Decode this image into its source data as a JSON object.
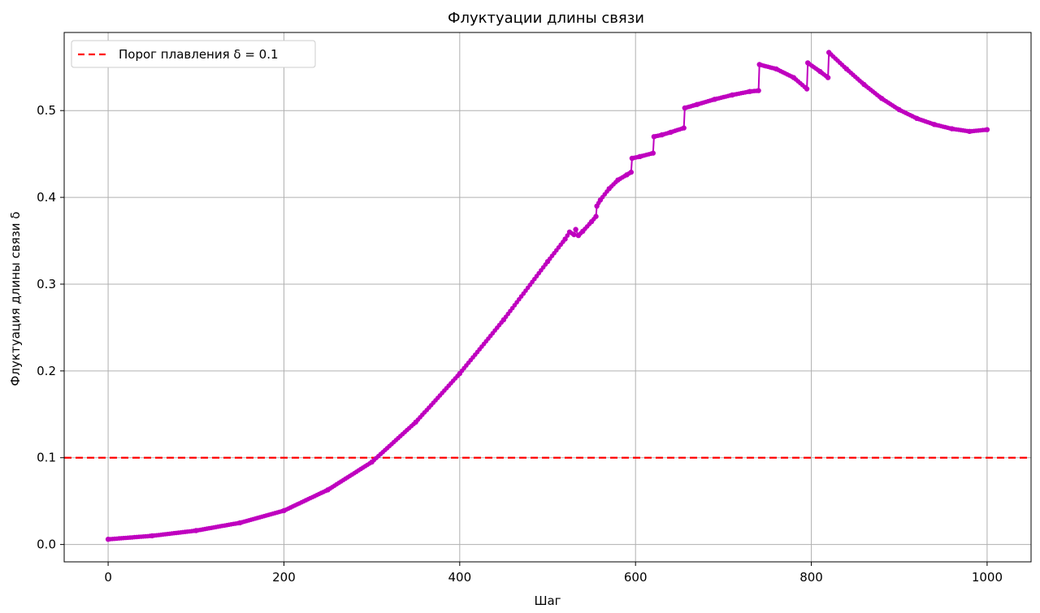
{
  "chart_data": {
    "type": "line",
    "title": "Флуктуации длины связи",
    "xlabel": "Шаг",
    "ylabel": "Флуктуация длины связи δ",
    "xlim": [
      -50,
      1050
    ],
    "ylim": [
      -0.02,
      0.59
    ],
    "xticks": [
      0,
      200,
      400,
      600,
      800,
      1000
    ],
    "xtick_labels": [
      "0",
      "200",
      "400",
      "600",
      "800",
      "1000"
    ],
    "yticks": [
      0.0,
      0.1,
      0.2,
      0.3,
      0.4,
      0.5
    ],
    "ytick_labels": [
      "0.0",
      "0.1",
      "0.2",
      "0.3",
      "0.4",
      "0.5"
    ],
    "grid": true,
    "legend_position": "top-left",
    "series": [
      {
        "color": "#bf00bf",
        "marker": "point",
        "x": [
          0,
          50,
          100,
          150,
          200,
          250,
          300,
          350,
          400,
          450,
          500,
          520,
          525,
          530,
          532,
          535,
          540,
          550,
          555,
          556,
          560,
          570,
          580,
          590,
          595,
          596,
          605,
          620,
          621,
          630,
          640,
          655,
          656,
          670,
          690,
          710,
          730,
          740,
          741,
          760,
          780,
          795,
          796,
          810,
          819,
          820,
          840,
          860,
          880,
          900,
          920,
          940,
          960,
          980,
          1000
        ],
        "y": [
          0.006,
          0.01,
          0.016,
          0.025,
          0.039,
          0.063,
          0.095,
          0.141,
          0.197,
          0.259,
          0.326,
          0.352,
          0.36,
          0.357,
          0.363,
          0.356,
          0.361,
          0.372,
          0.378,
          0.39,
          0.397,
          0.41,
          0.42,
          0.426,
          0.429,
          0.445,
          0.447,
          0.451,
          0.47,
          0.472,
          0.475,
          0.48,
          0.503,
          0.507,
          0.513,
          0.518,
          0.522,
          0.523,
          0.553,
          0.548,
          0.538,
          0.525,
          0.555,
          0.545,
          0.538,
          0.567,
          0.548,
          0.53,
          0.514,
          0.501,
          0.491,
          0.484,
          0.479,
          0.476,
          0.478
        ]
      }
    ],
    "threshold": {
      "label": "Порог плавления δ = 0.1",
      "y": 0.1,
      "color": "#ff0000",
      "style": "dashed"
    }
  }
}
